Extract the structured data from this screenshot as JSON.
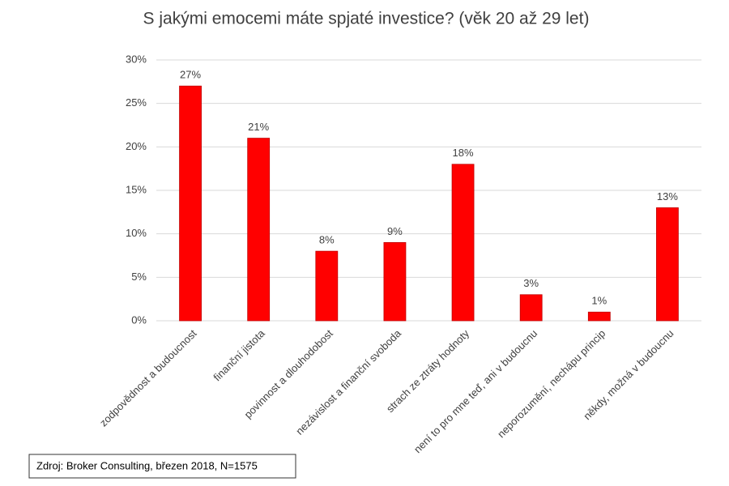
{
  "chart_data": {
    "type": "bar",
    "title": "S jakými emocemi máte spjaté investice? (věk 20 až 29 let)",
    "categories": [
      "zodpovědnost a budoucnost",
      "finanční jistota",
      "povinnost a dlouhodobost",
      "nezávislost a finanční svoboda",
      "strach ze ztráty hodnoty",
      "není to pro mne teď, ani v budoucnu",
      "neporozumění, nechápu princip",
      "někdy, možná v budoucnu"
    ],
    "values": [
      27,
      21,
      8,
      9,
      18,
      3,
      1,
      13
    ],
    "value_labels": [
      "27%",
      "21%",
      "8%",
      "9%",
      "18%",
      "3%",
      "1%",
      "13%"
    ],
    "color": "#ff0000",
    "ylim": [
      0,
      30
    ],
    "yticks": [
      {
        "value": 0,
        "label": "0%"
      },
      {
        "value": 5,
        "label": "5%"
      },
      {
        "value": 10,
        "label": "10%"
      },
      {
        "value": 15,
        "label": "15%"
      },
      {
        "value": 20,
        "label": "20%"
      },
      {
        "value": 25,
        "label": "25%"
      },
      {
        "value": 30,
        "label": "30%"
      }
    ],
    "grid": true,
    "source": "Zdroj: Broker Consulting, březen 2018, N=1575"
  }
}
